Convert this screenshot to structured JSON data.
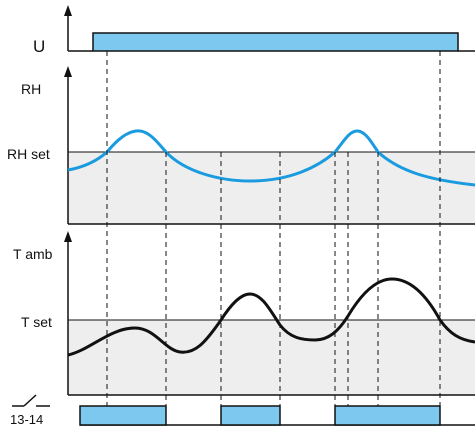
{
  "labels": {
    "u": "U",
    "rh": "RH",
    "rh_set": "RH set",
    "t_amb": "T amb",
    "t_set": "T set",
    "contact": "13-14"
  },
  "colors": {
    "signal_fill": "#7dc8ee",
    "rh_curve": "#1a9be0",
    "t_curve": "#111111",
    "below_threshold_fill": "#eeeeee",
    "axis": "#111111"
  }
}
